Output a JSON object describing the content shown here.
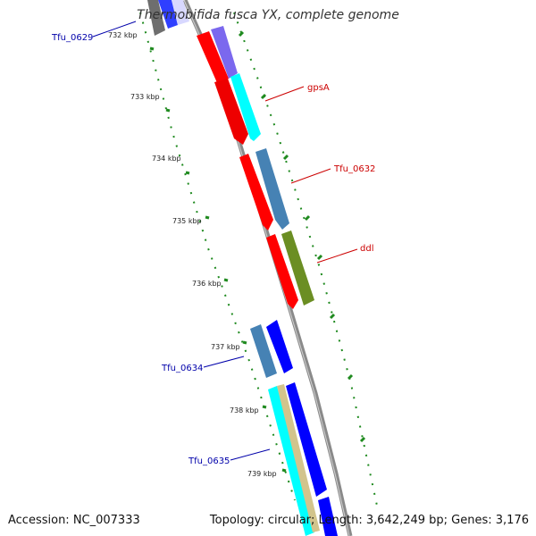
{
  "map": {
    "title": "Thermobifida fusca YX, complete genome",
    "accession": "Accession: NC_007333",
    "stats": "Topology: circular; Length: 3,642,249 bp; Genes: 3,176"
  },
  "ticks": [
    "732 kbp",
    "733 kbp",
    "734 kbp",
    "735 kbp",
    "736 kbp",
    "737 kbp",
    "738 kbp",
    "739 kbp"
  ],
  "gene_labels": [
    {
      "text": "Tfu_0629",
      "color": "#0000aa"
    },
    {
      "text": "gpsA",
      "color": "#cc0000"
    },
    {
      "text": "Tfu_0632",
      "color": "#cc0000"
    },
    {
      "text": "ddl",
      "color": "#cc0000"
    },
    {
      "text": "Tfu_0634",
      "color": "#0000aa"
    },
    {
      "text": "Tfu_0635",
      "color": "#0000aa"
    }
  ],
  "colors": {
    "backbone": "#8a8a8a",
    "tick_dots": "#1f8a1f",
    "red_gene": "#ff0000",
    "blue_gene": "#0000ff",
    "cyan_gene": "#00ffff",
    "steel_gene": "#4682b4",
    "olive_gene": "#6b8e23",
    "purple_gene": "#7b68ee",
    "tan_gene": "#d2c48c"
  }
}
